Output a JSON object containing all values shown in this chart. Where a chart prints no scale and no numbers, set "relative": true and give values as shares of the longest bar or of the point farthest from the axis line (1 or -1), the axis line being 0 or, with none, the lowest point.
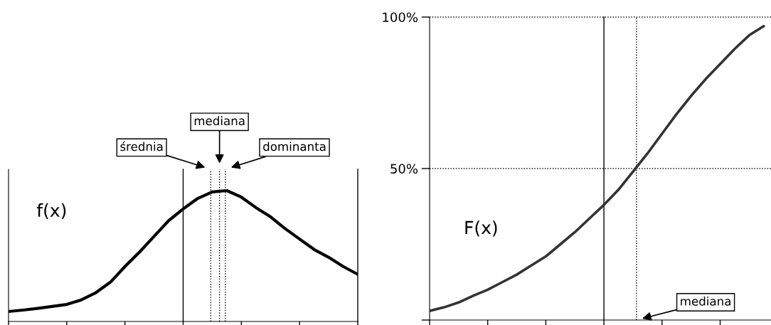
{
  "chart_data": [
    {
      "type": "line",
      "relative": true,
      "annotations": [
        "f(x)",
        "średnia",
        "mediana",
        "dominanta"
      ],
      "categories": [
        null,
        null,
        null,
        null,
        null,
        null,
        null,
        null,
        null,
        null,
        null,
        null,
        null,
        null,
        null,
        null,
        null,
        null,
        null,
        null,
        null,
        null,
        null,
        null,
        null
      ],
      "tick_labels": false,
      "series": [
        {
          "color": "#000000",
          "values": [
            0.076,
            0.087,
            0.1,
            0.115,
            0.13,
            0.165,
            0.22,
            0.3,
            0.42,
            0.53,
            0.65,
            0.77,
            0.86,
            0.94,
            0.99,
            1.0,
            0.95,
            0.87,
            0.8,
            0.71,
            0.63,
            0.55,
            0.49,
            0.42,
            0.36
          ]
        }
      ]
    },
    {
      "type": "line",
      "annotations": [
        "F(x)",
        "mediana"
      ],
      "ylim": [
        0,
        100
      ],
      "categories": [
        null,
        null,
        null,
        null,
        null,
        null,
        null,
        null,
        null,
        null,
        null,
        null,
        null,
        null,
        null,
        null,
        null,
        null,
        null,
        null,
        null,
        null,
        null,
        null
      ],
      "yticks": [
        {
          "value": 0,
          "label": null
        },
        {
          "value": 50,
          "label": "50%"
        },
        {
          "value": 100,
          "label": "100%"
        }
      ],
      "tick_labels": "y",
      "series": [
        {
          "color": "#333333",
          "values": [
            3,
            4.2,
            5.8,
            8,
            10,
            12.5,
            15,
            18,
            21,
            25,
            29,
            33.5,
            38,
            43,
            49,
            55,
            61.5,
            68,
            74,
            79.5,
            84.5,
            89.5,
            94,
            97
          ]
        }
      ],
      "ref_lines": [
        {
          "axis": "y",
          "value": 100,
          "color": "#000000",
          "line_style": "dotted"
        },
        {
          "axis": "y",
          "value": 50,
          "color": "#000000",
          "line_style": "dotted"
        }
      ]
    }
  ]
}
